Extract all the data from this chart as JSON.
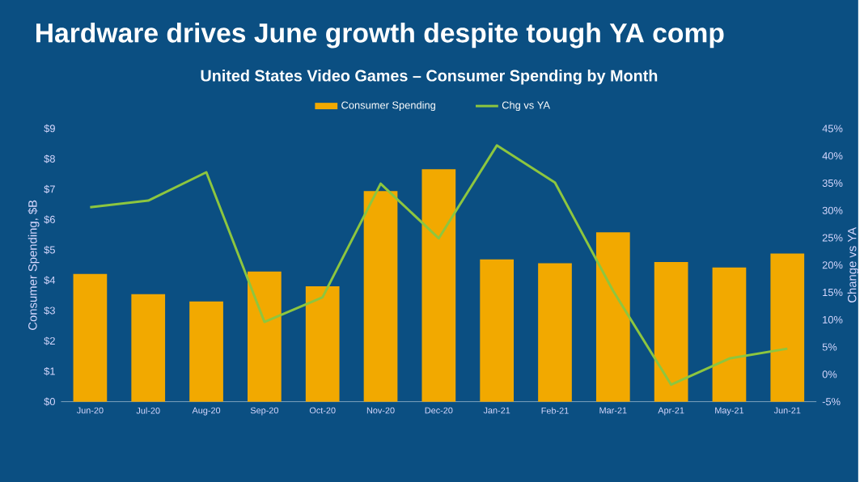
{
  "chart_data": {
    "type": "bar",
    "title": "Hardware drives June growth despite tough YA comp",
    "subtitle": "United States Video Games – Consumer Spending by Month",
    "categories": [
      "Jun-20",
      "Jul-20",
      "Aug-20",
      "Sep-20",
      "Oct-20",
      "Nov-20",
      "Dec-20",
      "Jan-21",
      "Feb-21",
      "Mar-21",
      "Apr-21",
      "May-21",
      "Jun-21"
    ],
    "series": [
      {
        "name": "Consumer Spending",
        "color": "#f2a900",
        "values": [
          4.21,
          3.54,
          3.3,
          4.29,
          3.8,
          6.94,
          7.66,
          4.69,
          4.56,
          5.58,
          4.6,
          4.42,
          4.88
        ]
      },
      {
        "name": "Chg vs YA",
        "type": "line",
        "axis": "y2",
        "color": "#8dc63f",
        "values": [
          30.6,
          31.8,
          37.0,
          9.6,
          14.1,
          34.9,
          24.9,
          41.9,
          35.1,
          15.3,
          -1.9,
          2.9,
          4.7
        ]
      }
    ],
    "ylabel": "Consumer Spending, $B",
    "y2label": "Change vs YA",
    "ylim": [
      0,
      9
    ],
    "yticks": [
      {
        "value": 0,
        "label": "$0"
      },
      {
        "value": 1,
        "label": "$1"
      },
      {
        "value": 2,
        "label": "$2"
      },
      {
        "value": 3,
        "label": "$3"
      },
      {
        "value": 4,
        "label": "$4"
      },
      {
        "value": 5,
        "label": "$5"
      },
      {
        "value": 6,
        "label": "$6"
      },
      {
        "value": 7,
        "label": "$7"
      },
      {
        "value": 8,
        "label": "$8"
      },
      {
        "value": 9,
        "label": "$9"
      }
    ],
    "y2lim": [
      -5,
      45
    ],
    "y2ticks": [
      {
        "value": -5,
        "label": "-5%"
      },
      {
        "value": 0,
        "label": "0%"
      },
      {
        "value": 5,
        "label": "5%"
      },
      {
        "value": 10,
        "label": "10%"
      },
      {
        "value": 15,
        "label": "15%"
      },
      {
        "value": 20,
        "label": "20%"
      },
      {
        "value": 25,
        "label": "25%"
      },
      {
        "value": 30,
        "label": "30%"
      },
      {
        "value": 35,
        "label": "35%"
      },
      {
        "value": 40,
        "label": "40%"
      },
      {
        "value": 45,
        "label": "45%"
      }
    ],
    "legend": "top",
    "grid": false,
    "marker": "none",
    "line_style": "solid"
  }
}
